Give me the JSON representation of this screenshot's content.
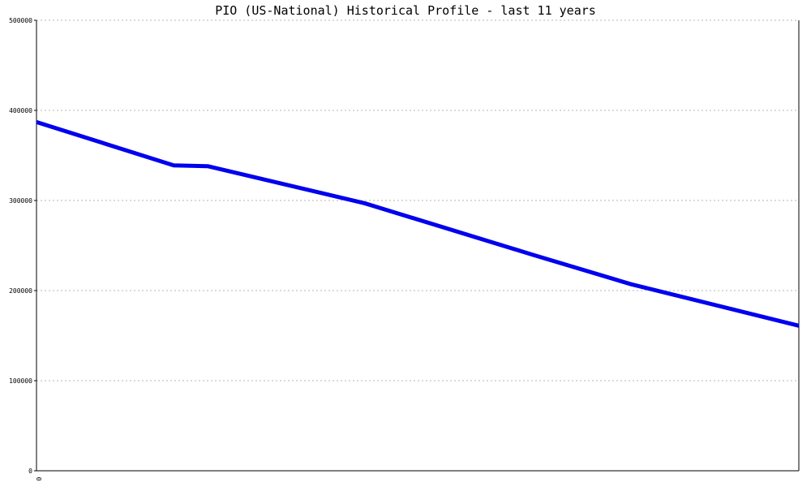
{
  "chart_data": {
    "type": "line",
    "title": "PIO (US-National) Historical Profile - last 11 years",
    "xlabel": "",
    "ylabel": "",
    "x": [
      0,
      0.18,
      0.225,
      0.43,
      0.65,
      0.78,
      1.0
    ],
    "x_tick_labels": [
      "0"
    ],
    "ylim": [
      0,
      500000
    ],
    "y_ticks": [
      "0",
      "100000",
      "200000",
      "300000",
      "400000",
      "500000"
    ],
    "series": [
      {
        "values": [
          387000,
          339000,
          338000,
          297000,
          240000,
          207000,
          161000
        ]
      }
    ],
    "grid": true,
    "line_color": "#0000ee"
  }
}
